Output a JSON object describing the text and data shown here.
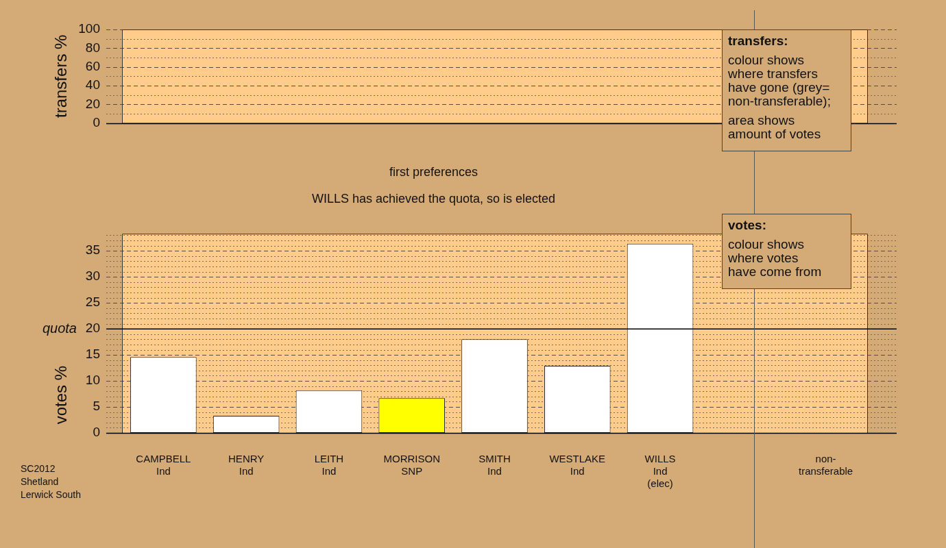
{
  "chart_data": [
    {
      "type": "bar",
      "ylabel": "transfers %",
      "categories": [
        null,
        null,
        null,
        null,
        null,
        null,
        null,
        null,
        null
      ],
      "values": [
        null,
        null,
        null,
        null,
        null,
        null,
        null,
        null,
        null
      ],
      "ylim": [
        0,
        100
      ],
      "yticks": [
        0,
        {
          "value": 10,
          "label": null
        },
        20,
        {
          "value": 30,
          "label": null
        },
        40,
        {
          "value": 50,
          "label": null
        },
        60,
        {
          "value": 70,
          "label": null
        },
        80,
        {
          "value": 90,
          "label": null
        },
        100
      ],
      "grid": "y",
      "tick_labels": "y",
      "annotations": [
        "transfers:",
        "colour shows\nwhere transfers\nhave gone (grey=\nnon-transferable);",
        "area shows\namount of votes"
      ]
    },
    {
      "type": "bar",
      "title": "first preferences",
      "subtitle": "WILLS has achieved the quota, so is elected",
      "ylabel": "votes %",
      "categories": [
        "CAMPBELL\nInd",
        "HENRY\nInd",
        "LEITH\nInd",
        "MORRISON\nSNP",
        "SMITH\nInd",
        "WESTLAKE\nInd",
        "WILLS\nInd\n(elec)",
        null,
        "non-transferable"
      ],
      "values": [
        14.6,
        3.3,
        8.2,
        6.7,
        18.0,
        12.9,
        36.4,
        null,
        null
      ],
      "colors": [
        "#ffffff",
        "#ffffff",
        "#ffffff",
        "#ffff00",
        "#ffffff",
        "#ffffff",
        "#ffffff",
        "#ffffff",
        "#ffffff"
      ],
      "ylim": [
        0,
        38.3
      ],
      "yticks": [
        0,
        {
          "value": 1,
          "label": null
        },
        {
          "value": 2,
          "label": null
        },
        {
          "value": 3,
          "label": null
        },
        {
          "value": 4,
          "label": null
        },
        5,
        {
          "value": 6,
          "label": null
        },
        {
          "value": 7,
          "label": null
        },
        {
          "value": 8,
          "label": null
        },
        {
          "value": 9,
          "label": null
        },
        10,
        {
          "value": 11,
          "label": null
        },
        {
          "value": 12,
          "label": null
        },
        {
          "value": 13,
          "label": null
        },
        {
          "value": 14,
          "label": null
        },
        15,
        {
          "value": 16,
          "label": null
        },
        {
          "value": 17,
          "label": null
        },
        {
          "value": 18,
          "label": null
        },
        {
          "value": 19,
          "label": null
        },
        20,
        {
          "value": 21,
          "label": null
        },
        {
          "value": 22,
          "label": null
        },
        {
          "value": 23,
          "label": null
        },
        {
          "value": 24,
          "label": null
        },
        25,
        {
          "value": 26,
          "label": null
        },
        {
          "value": 27,
          "label": null
        },
        {
          "value": 28,
          "label": null
        },
        {
          "value": 29,
          "label": null
        },
        30,
        {
          "value": 31,
          "label": null
        },
        {
          "value": 32,
          "label": null
        },
        {
          "value": 33,
          "label": null
        },
        {
          "value": 34,
          "label": null
        },
        35,
        {
          "value": 36,
          "label": null
        },
        {
          "value": 37,
          "label": null
        },
        {
          "value": 38,
          "label": null
        }
      ],
      "grid": "y",
      "ref_lines": [
        {
          "axis": "y",
          "value": 20,
          "label": "quota",
          "color": "#000000",
          "line_style": "solid"
        }
      ],
      "annotations": [
        "votes:",
        "colour shows\nwhere votes\nhave come from",
        "SC2012\nShetland\nLerwick South"
      ]
    }
  ]
}
